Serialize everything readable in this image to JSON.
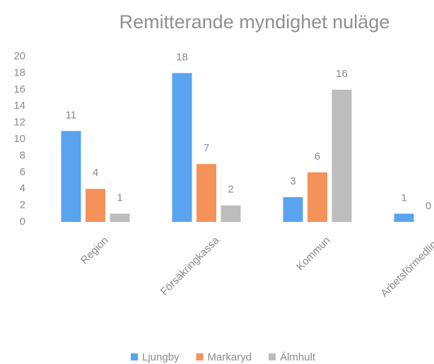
{
  "chart_data": {
    "type": "bar",
    "title": "Remitterande myndighet nuläge",
    "categories": [
      "Region",
      "Försäkringkassa",
      "Kommun",
      "Arbetsförmedling"
    ],
    "series": [
      {
        "name": "Ljungby",
        "color": "#5aa3ef",
        "values": [
          11,
          18,
          3,
          1
        ]
      },
      {
        "name": "Markaryd",
        "color": "#f4925a",
        "values": [
          4,
          7,
          6,
          0
        ]
      },
      {
        "name": "Älmhult",
        "color": "#bdbdbd",
        "values": [
          1,
          2,
          16,
          null
        ]
      }
    ],
    "ylim": [
      0,
      20
    ],
    "yticks": [
      0,
      2,
      4,
      6,
      8,
      10,
      12,
      14,
      16,
      18,
      20
    ],
    "grid": false,
    "legend": "bottom"
  }
}
